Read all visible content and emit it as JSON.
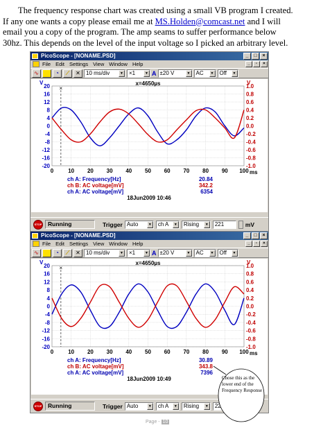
{
  "intro": {
    "line1": "The frequency response chart was created using a small  VB  program I created.",
    "line2a": "If any one wants a copy please email me at ",
    "email": "MS.Holden@comcast.net",
    "line2b": " and I will",
    "line3": "email you a copy of the program.   The amp seams to suffer performance below",
    "line4": "30hz.  This depends on the level of the input voltage so I picked an arbitrary level."
  },
  "windows": [
    {
      "title": "PicoScope - [NONAME.PSD]",
      "menu": [
        "File",
        "Edit",
        "Settings",
        "View",
        "Window",
        "Help"
      ],
      "toolbar": {
        "timebase": "10 ms/div",
        "mult": "×1",
        "channel": "A",
        "range": "±20 V",
        "coupling": "AC",
        "offset": "Off"
      },
      "cursor_label": "x=4650µs",
      "readings": [
        {
          "label": "ch A: Frequency[Hz]",
          "value": "20.84",
          "color": "#0000b0"
        },
        {
          "label": "ch B: AC voltage[mV]",
          "value": "342.2",
          "color": "#c00000"
        },
        {
          "label": "ch A: AC voltage[mV]",
          "value": "6354",
          "color": "#0000b0"
        }
      ],
      "timestamp": "18Jun2009  10:46",
      "status": {
        "state": "Running",
        "trigger_label": "Trigger",
        "trigger_mode": "Auto",
        "trigger_channel": "ch A",
        "edge": "Rising",
        "level": "221",
        "unit": "mV"
      }
    },
    {
      "title": "PicoScope - [NONAME.PSD]",
      "menu": [
        "File",
        "Edit",
        "Settings",
        "View",
        "Window",
        "Help"
      ],
      "toolbar": {
        "timebase": "10 ms/div",
        "mult": "×1",
        "channel": "A",
        "range": "±20 V",
        "coupling": "AC",
        "offset": "Off"
      },
      "cursor_label": "x=4650µs",
      "readings": [
        {
          "label": "ch A: Frequency[Hz]",
          "value": "30.89",
          "color": "#0000b0"
        },
        {
          "label": "ch B: AC voltage[mV]",
          "value": "343.8",
          "color": "#c00000"
        },
        {
          "label": "ch A: AC voltage[mV]",
          "value": "7396",
          "color": "#0000b0"
        }
      ],
      "timestamp": "18Jun2009  10:49",
      "status": {
        "state": "Running",
        "trigger_label": "Trigger",
        "trigger_mode": "Auto",
        "trigger_channel": "ch A",
        "edge": "Rising",
        "level": "22",
        "unit": ""
      }
    }
  ],
  "chart_data": [
    {
      "type": "line",
      "x": [
        0,
        5,
        10,
        15,
        20,
        25,
        30,
        35,
        40,
        45,
        50,
        55,
        60,
        65,
        70,
        75,
        80,
        85,
        90,
        95,
        100
      ],
      "xlim": [
        0,
        100
      ],
      "x_unit": "ms",
      "y_left_label": "V",
      "y_left_ticks": [
        "20",
        "16",
        "12",
        "8",
        "4",
        "0",
        "-4",
        "-8",
        "-12",
        "-16",
        "-20"
      ],
      "y_right_label": "V",
      "y_right_ticks": [
        "1.0",
        "0.8",
        "0.6",
        "0.4",
        "0.2",
        "0.0",
        "-0.2",
        "-0.4",
        "-0.6",
        "-0.8",
        "-1.0"
      ],
      "y_left_range": [
        -20,
        20
      ],
      "y_right_range": [
        -1,
        1
      ],
      "series": [
        {
          "color": "#0000c0",
          "axis": "left",
          "values": [
            4,
            9,
            8,
            2,
            -6,
            -10,
            -6,
            0,
            6,
            9,
            5,
            -3,
            -9,
            -7,
            -2,
            5,
            9,
            7,
            0,
            -5,
            -1
          ]
        },
        {
          "color": "#d00000",
          "axis": "right",
          "values": [
            0.2,
            -0.1,
            -0.35,
            -0.4,
            -0.2,
            0.1,
            0.35,
            0.42,
            0.3,
            0.05,
            -0.22,
            -0.4,
            -0.35,
            -0.1,
            0.15,
            0.38,
            0.4,
            0.2,
            -0.05,
            -0.3,
            0.4
          ]
        }
      ],
      "cursor_x": 4.65,
      "grid": true
    },
    {
      "type": "line",
      "x": [
        0,
        5,
        10,
        15,
        20,
        25,
        30,
        35,
        40,
        45,
        50,
        55,
        60,
        65,
        70,
        75,
        80,
        85,
        90,
        95,
        100
      ],
      "xlim": [
        0,
        100
      ],
      "x_unit": "ms",
      "y_left_label": "V",
      "y_left_ticks": [
        "20",
        "16",
        "12",
        "8",
        "4",
        "0",
        "-4",
        "-8",
        "-12",
        "-16",
        "-20"
      ],
      "y_right_label": "V",
      "y_right_ticks": [
        "1.0",
        "0.8",
        "0.6",
        "0.4",
        "0.2",
        "0.0",
        "-0.2",
        "-0.4",
        "-0.6",
        "-0.8",
        "-1.0"
      ],
      "y_left_range": [
        -20,
        20
      ],
      "y_right_range": [
        -1,
        1
      ],
      "series": [
        {
          "color": "#0000c0",
          "axis": "left",
          "values": [
            -4,
            6,
            10.5,
            7,
            -2,
            -10,
            -10,
            -3,
            6,
            11,
            7,
            -2,
            -10,
            -10,
            -3,
            6,
            11,
            7,
            -2,
            -9,
            4
          ]
        },
        {
          "color": "#d00000",
          "axis": "right",
          "values": [
            0.2,
            -0.3,
            -0.5,
            -0.3,
            0.1,
            0.5,
            0.48,
            0.1,
            -0.3,
            -0.52,
            -0.33,
            0.1,
            0.5,
            0.5,
            0.12,
            -0.3,
            -0.52,
            -0.33,
            0.1,
            0.48,
            0.3
          ]
        }
      ],
      "cursor_x": 4.65,
      "grid": true
    }
  ],
  "callout": {
    "text": "Chose this as the lower end of the Frequency Response"
  },
  "footer": {
    "label": "Page - ",
    "number": "10"
  }
}
